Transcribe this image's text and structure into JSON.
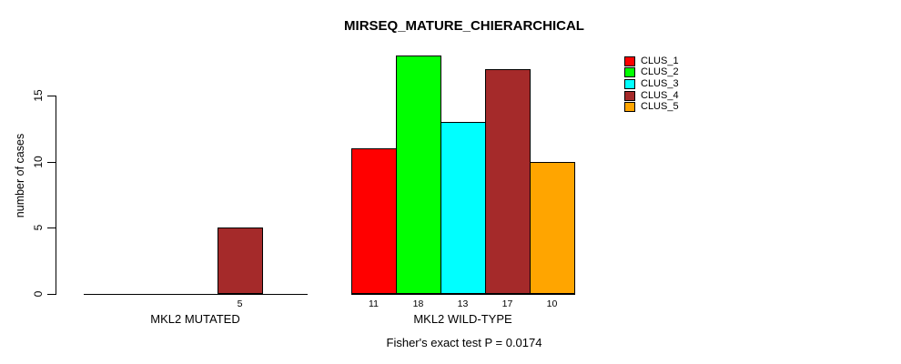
{
  "chart_data": {
    "type": "bar",
    "title": "MIRSEQ_MATURE_CHIERARCHICAL",
    "xlabel": "",
    "ylabel": "number of cases",
    "categories": [
      "MKL2 MUTATED",
      "MKL2 WILD-TYPE"
    ],
    "series": [
      {
        "name": "CLUS_1",
        "color": "#FF0000",
        "values": [
          0,
          11
        ]
      },
      {
        "name": "CLUS_2",
        "color": "#00FF00",
        "values": [
          0,
          18
        ]
      },
      {
        "name": "CLUS_3",
        "color": "#00FFFF",
        "values": [
          0,
          13
        ]
      },
      {
        "name": "CLUS_4",
        "color": "#A52A2A",
        "values": [
          5,
          17
        ]
      },
      {
        "name": "CLUS_5",
        "color": "#FFA500",
        "values": [
          0,
          10
        ]
      }
    ],
    "y_ticks": [
      0,
      5,
      10,
      15
    ],
    "ylim": [
      0,
      18
    ],
    "grid": false,
    "legend_position": "top-right",
    "bar_border_color": "#000000",
    "annotation": "Fisher's exact test P = 0.0174"
  }
}
